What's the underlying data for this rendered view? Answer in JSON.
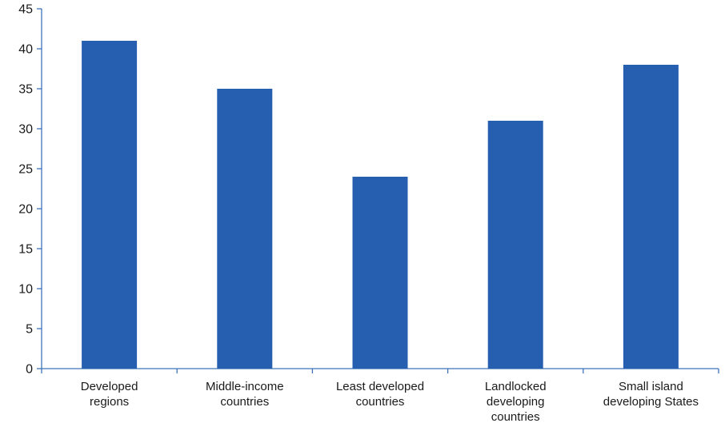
{
  "chart_data": {
    "type": "bar",
    "categories": [
      [
        "Developed",
        "regions"
      ],
      [
        "Middle-income",
        "countries"
      ],
      [
        "Least developed",
        "countries"
      ],
      [
        "Landlocked",
        "developing",
        "countries"
      ],
      [
        "Small island",
        "developing States"
      ]
    ],
    "values": [
      41,
      35,
      24,
      31,
      38
    ],
    "ylim": [
      0,
      45
    ],
    "yticks": [
      "0",
      "5",
      "10",
      "15",
      "20",
      "25",
      "30",
      "35",
      "40",
      "45"
    ],
    "grid": false,
    "title": "",
    "xlabel": "",
    "ylabel": "",
    "colors": {
      "bar": "#265fb0",
      "axis": "#3f73b9"
    }
  }
}
